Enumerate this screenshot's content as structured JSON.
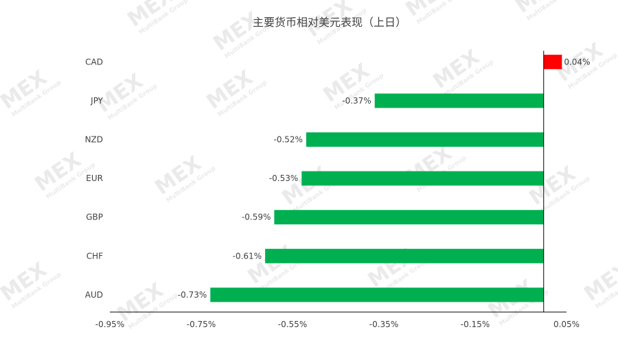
{
  "chart_data": {
    "type": "bar",
    "orientation": "horizontal",
    "title": "主要货币相对美元表现（上日）",
    "categories": [
      "CAD",
      "JPY",
      "NZD",
      "EUR",
      "GBP",
      "CHF",
      "AUD"
    ],
    "values": [
      0.04,
      -0.37,
      -0.52,
      -0.53,
      -0.59,
      -0.61,
      -0.73
    ],
    "value_labels": [
      "0.04%",
      "-0.37%",
      "-0.52%",
      "-0.53%",
      "-0.59%",
      "-0.61%",
      "-0.73%"
    ],
    "xlim": [
      -0.95,
      0.05
    ],
    "xticks": [
      -0.95,
      -0.75,
      -0.55,
      -0.35,
      -0.15,
      0.05
    ],
    "xtick_labels": [
      "-0.95%",
      "-0.75%",
      "-0.55%",
      "-0.35%",
      "-0.15%",
      "0.05%"
    ],
    "grid": false,
    "colors": {
      "positive": "#ff0000",
      "negative": "#00b050"
    }
  },
  "watermark": {
    "logo": "MEX",
    "tagline": "MultiBank Group"
  }
}
